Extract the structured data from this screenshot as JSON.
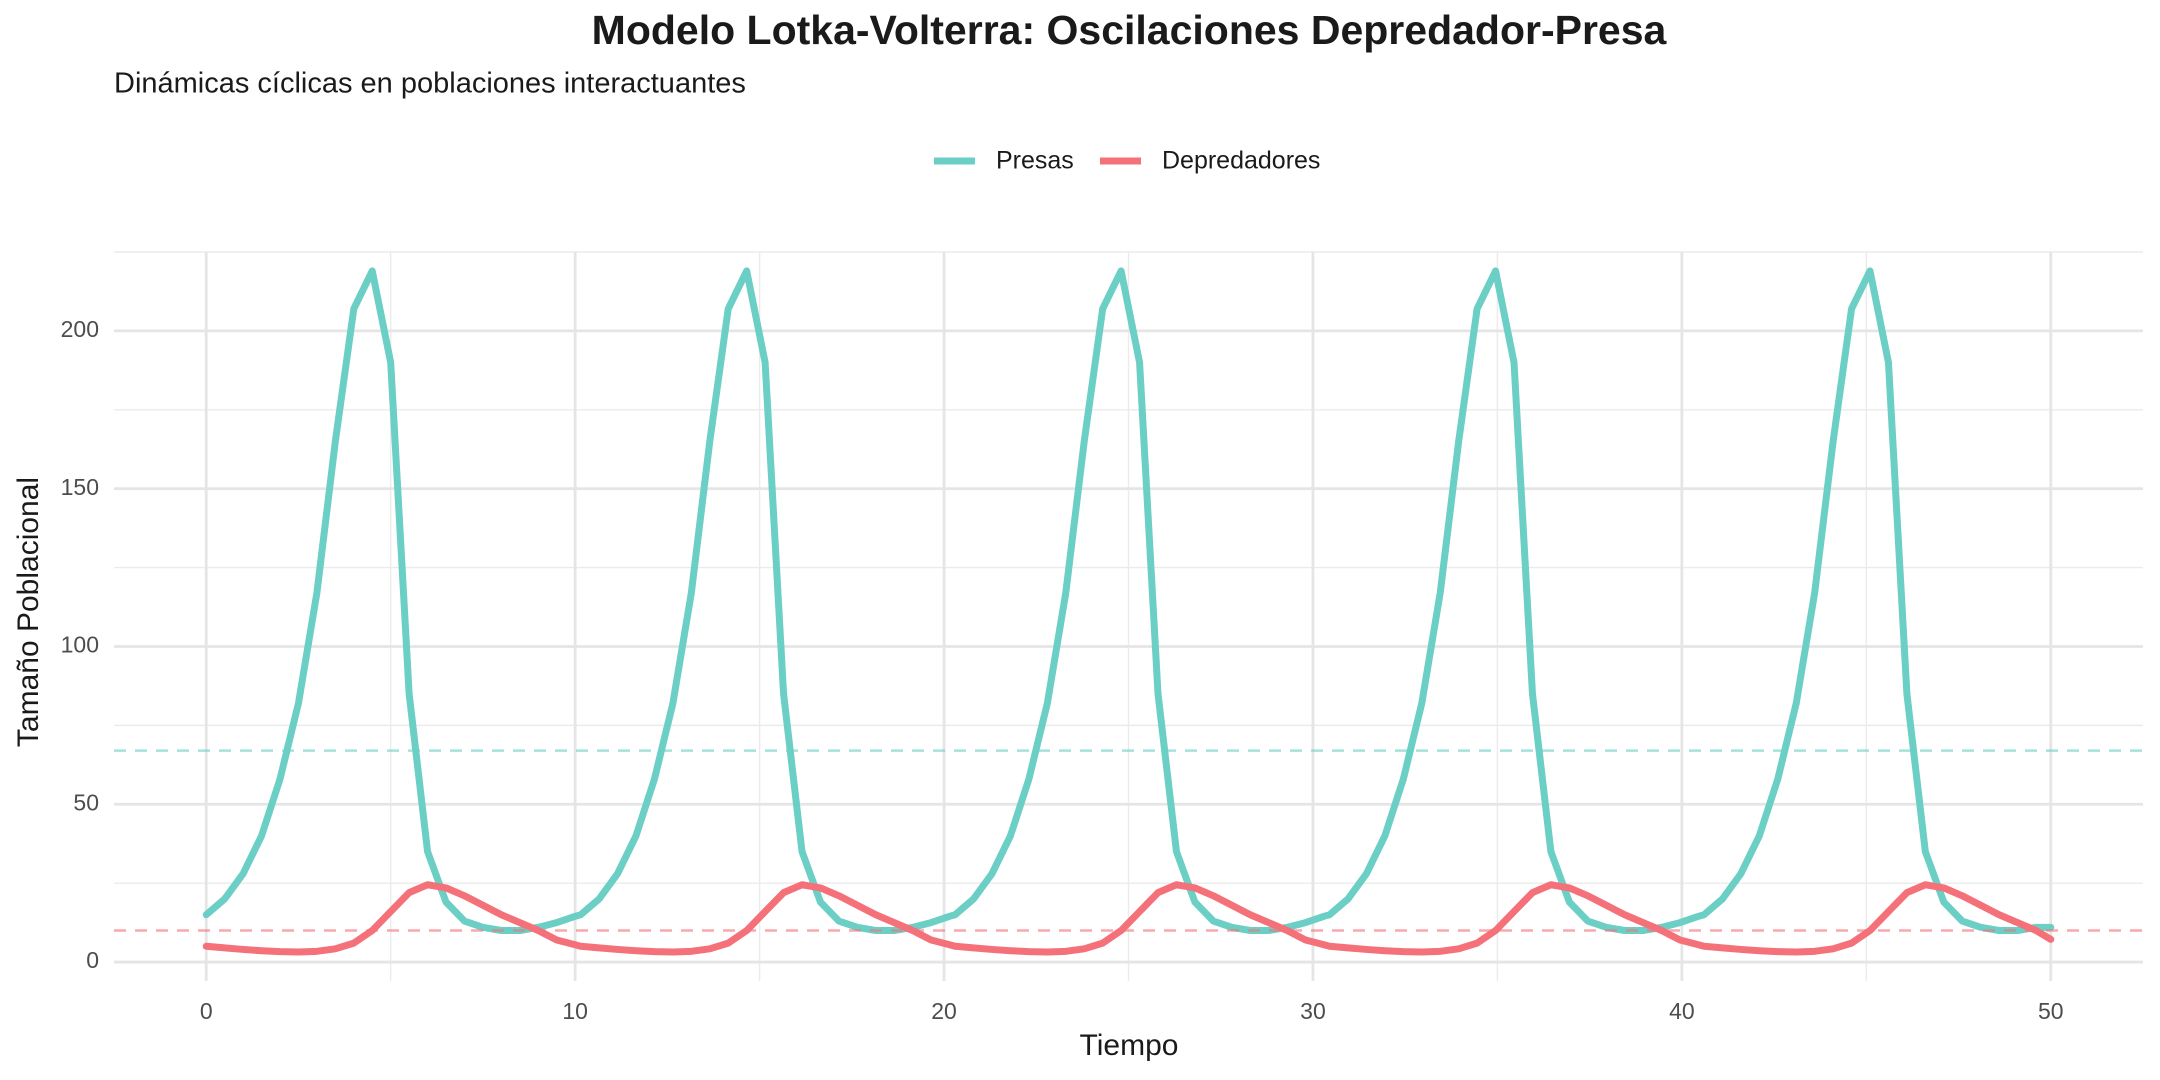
{
  "chart_data": {
    "type": "line",
    "title": "Modelo Lotka-Volterra: Oscilaciones Depredador-Presa",
    "subtitle": "Dinámicas cíclicas en poblaciones interactuantes",
    "x_label": "Tiempo",
    "y_label": "Tamaño Poblacional",
    "x": [
      0,
      0.5,
      1,
      1.5,
      2,
      2.5,
      3,
      3.5,
      4,
      4.5,
      5,
      5.5,
      6,
      6.5,
      7,
      7.5,
      8,
      8.5,
      9,
      9.5,
      10,
      10.15,
      10.65,
      11.15,
      11.65,
      12.15,
      12.65,
      13.15,
      13.65,
      14.15,
      14.65,
      15.15,
      15.65,
      16.15,
      16.65,
      17.15,
      17.65,
      18.15,
      18.65,
      19.15,
      19.65,
      20.15,
      20.3,
      20.8,
      21.3,
      21.8,
      22.3,
      22.8,
      23.3,
      23.8,
      24.3,
      24.8,
      25.3,
      25.8,
      26.3,
      26.8,
      27.3,
      27.8,
      28.3,
      28.8,
      29.3,
      29.8,
      30.3,
      30.45,
      30.95,
      31.45,
      31.95,
      32.45,
      32.95,
      33.45,
      33.95,
      34.45,
      34.95,
      35.45,
      35.95,
      36.45,
      36.95,
      37.45,
      37.95,
      38.45,
      38.95,
      39.45,
      39.95,
      40.45,
      40.6,
      41.1,
      41.6,
      42.1,
      42.6,
      43.1,
      43.6,
      44.1,
      44.6,
      45.1,
      45.6,
      46.1,
      46.6,
      47.1,
      47.6,
      48.1,
      48.6,
      49.1,
      49.6,
      50
    ],
    "series": [
      {
        "name": "Presas",
        "color": "#6bcfc5",
        "equilibrium": 67,
        "values": [
          15,
          20,
          28,
          40,
          58,
          82,
          117,
          165,
          207,
          219,
          190,
          85,
          35,
          19,
          13,
          11,
          10,
          10,
          11,
          12.5,
          14.5,
          15,
          20,
          28,
          40,
          58,
          82,
          117,
          165,
          207,
          219,
          190,
          85,
          35,
          19,
          13,
          11,
          10,
          10,
          11,
          12.5,
          14.5,
          15,
          20,
          28,
          40,
          58,
          82,
          117,
          165,
          207,
          219,
          190,
          85,
          35,
          19,
          13,
          11,
          10,
          10,
          11,
          12.5,
          14.5,
          15,
          20,
          28,
          40,
          58,
          82,
          117,
          165,
          207,
          219,
          190,
          85,
          35,
          19,
          13,
          11,
          10,
          10,
          11,
          12.5,
          14.5,
          15,
          20,
          28,
          40,
          58,
          82,
          117,
          165,
          207,
          219,
          190,
          85,
          35,
          19,
          13,
          11,
          10,
          10,
          11,
          11
        ]
      },
      {
        "name": "Depredadores",
        "color": "#f4717a",
        "equilibrium": 10,
        "values": [
          5,
          4.5,
          4,
          3.6,
          3.3,
          3.2,
          3.4,
          4.2,
          6,
          10,
          16,
          22,
          24.5,
          23.5,
          21,
          18,
          15,
          12.5,
          10,
          7,
          5.5,
          5,
          4.5,
          4,
          3.6,
          3.3,
          3.2,
          3.4,
          4.2,
          6,
          10,
          16,
          22,
          24.5,
          23.5,
          21,
          18,
          15,
          12.5,
          10,
          7,
          5.5,
          5,
          4.5,
          4,
          3.6,
          3.3,
          3.2,
          3.4,
          4.2,
          6,
          10,
          16,
          22,
          24.5,
          23.5,
          21,
          18,
          15,
          12.5,
          10,
          7,
          5.5,
          5,
          4.5,
          4,
          3.6,
          3.3,
          3.2,
          3.4,
          4.2,
          6,
          10,
          16,
          22,
          24.5,
          23.5,
          21,
          18,
          15,
          12.5,
          10,
          7,
          5.5,
          5,
          4.5,
          4,
          3.6,
          3.3,
          3.2,
          3.4,
          4.2,
          6,
          10,
          16,
          22,
          24.5,
          23.5,
          21,
          18,
          15,
          12.5,
          10,
          7.2
        ]
      }
    ],
    "xlim": [
      -2.5,
      52.5
    ],
    "ylim": [
      -6,
      225
    ],
    "xticks": [
      0,
      10,
      20,
      30,
      40,
      50
    ],
    "yticks": [
      0,
      50,
      100,
      150,
      200
    ],
    "xminor_ticks": [
      5,
      15,
      25,
      35,
      45
    ],
    "yminor_ticks": [
      25,
      75,
      125,
      175,
      225
    ],
    "grid": true,
    "legend": "top"
  }
}
